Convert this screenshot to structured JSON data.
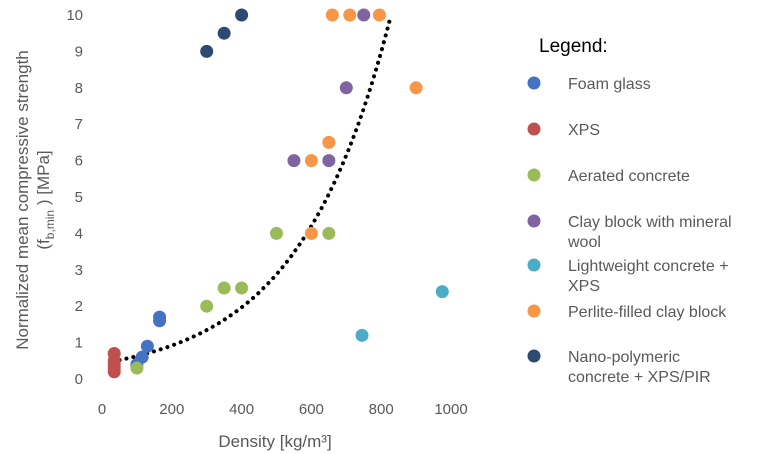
{
  "chart_data": {
    "type": "scatter",
    "xlabel": "Density [kg/m³]",
    "ylabel_line1": "Normalized mean compressive strength",
    "ylabel_line2_prefix": "(f",
    "ylabel_subscript": "b,min",
    "ylabel_line2_suffix": " ) [MPa]",
    "xlim": [
      0,
      1000
    ],
    "ylim": [
      0,
      10
    ],
    "xticks": [
      "0",
      "200",
      "400",
      "600",
      "800",
      "1000"
    ],
    "yticks": [
      "0",
      "1",
      "2",
      "3",
      "4",
      "5",
      "6",
      "7",
      "8",
      "9",
      "10"
    ],
    "grid": false,
    "legend": {
      "title": "Legend:",
      "placement": "right",
      "entries": [
        {
          "series": 0,
          "lines": [
            "Foam glass"
          ]
        },
        {
          "series": 1,
          "lines": [
            "XPS"
          ]
        },
        {
          "series": 2,
          "lines": [
            "Aerated concrete"
          ]
        },
        {
          "series": 3,
          "lines": [
            "Clay block with mineral",
            "wool"
          ]
        },
        {
          "series": 4,
          "lines": [
            "Lightweight concrete +",
            "XPS"
          ]
        },
        {
          "series": 5,
          "lines": [
            "Perlite-filled clay block"
          ]
        },
        {
          "series": 6,
          "lines": [
            "Nano-polymeric",
            "concrete + XPS/PIR"
          ]
        }
      ]
    },
    "series": [
      {
        "name": "Foam glass",
        "color": "#4472c4",
        "points": [
          [
            100,
            0.4
          ],
          [
            115,
            0.6
          ],
          [
            130,
            0.9
          ],
          [
            165,
            1.6
          ],
          [
            165,
            1.7
          ]
        ]
      },
      {
        "name": "XPS",
        "color": "#c0504d",
        "points": [
          [
            35,
            0.2
          ],
          [
            35,
            0.3
          ],
          [
            35,
            0.4
          ],
          [
            35,
            0.5
          ],
          [
            35,
            0.7
          ]
        ]
      },
      {
        "name": "Aerated concrete",
        "color": "#9bbb59",
        "points": [
          [
            100,
            0.3
          ],
          [
            300,
            2.0
          ],
          [
            350,
            2.5
          ],
          [
            400,
            2.5
          ],
          [
            500,
            4.0
          ],
          [
            650,
            4.0
          ]
        ]
      },
      {
        "name": "Clay block with mineral wool",
        "color": "#8064a2",
        "points": [
          [
            550,
            6.0
          ],
          [
            650,
            6.0
          ],
          [
            700,
            8.0
          ],
          [
            750,
            10.0
          ]
        ]
      },
      {
        "name": "Lightweight concrete + XPS",
        "color": "#4bacc6",
        "points": [
          [
            745,
            1.2
          ],
          [
            975,
            2.4
          ]
        ]
      },
      {
        "name": "Perlite-filled clay block",
        "color": "#f79646",
        "points": [
          [
            600,
            4.0
          ],
          [
            600,
            6.0
          ],
          [
            650,
            6.5
          ],
          [
            660,
            10.0
          ],
          [
            710,
            10.0
          ],
          [
            795,
            10.0
          ],
          [
            900,
            8.0
          ]
        ]
      },
      {
        "name": "Nano-polymeric concrete + XPS/PIR",
        "color": "#2e4a72",
        "points": [
          [
            300,
            9.0
          ],
          [
            350,
            9.5
          ],
          [
            400,
            10.0
          ]
        ]
      }
    ],
    "trendline": {
      "type": "exponential",
      "style": "dotted",
      "color": "#000000",
      "a": 0.43,
      "b": 0.0038,
      "x_range": [
        30,
        830
      ]
    }
  }
}
